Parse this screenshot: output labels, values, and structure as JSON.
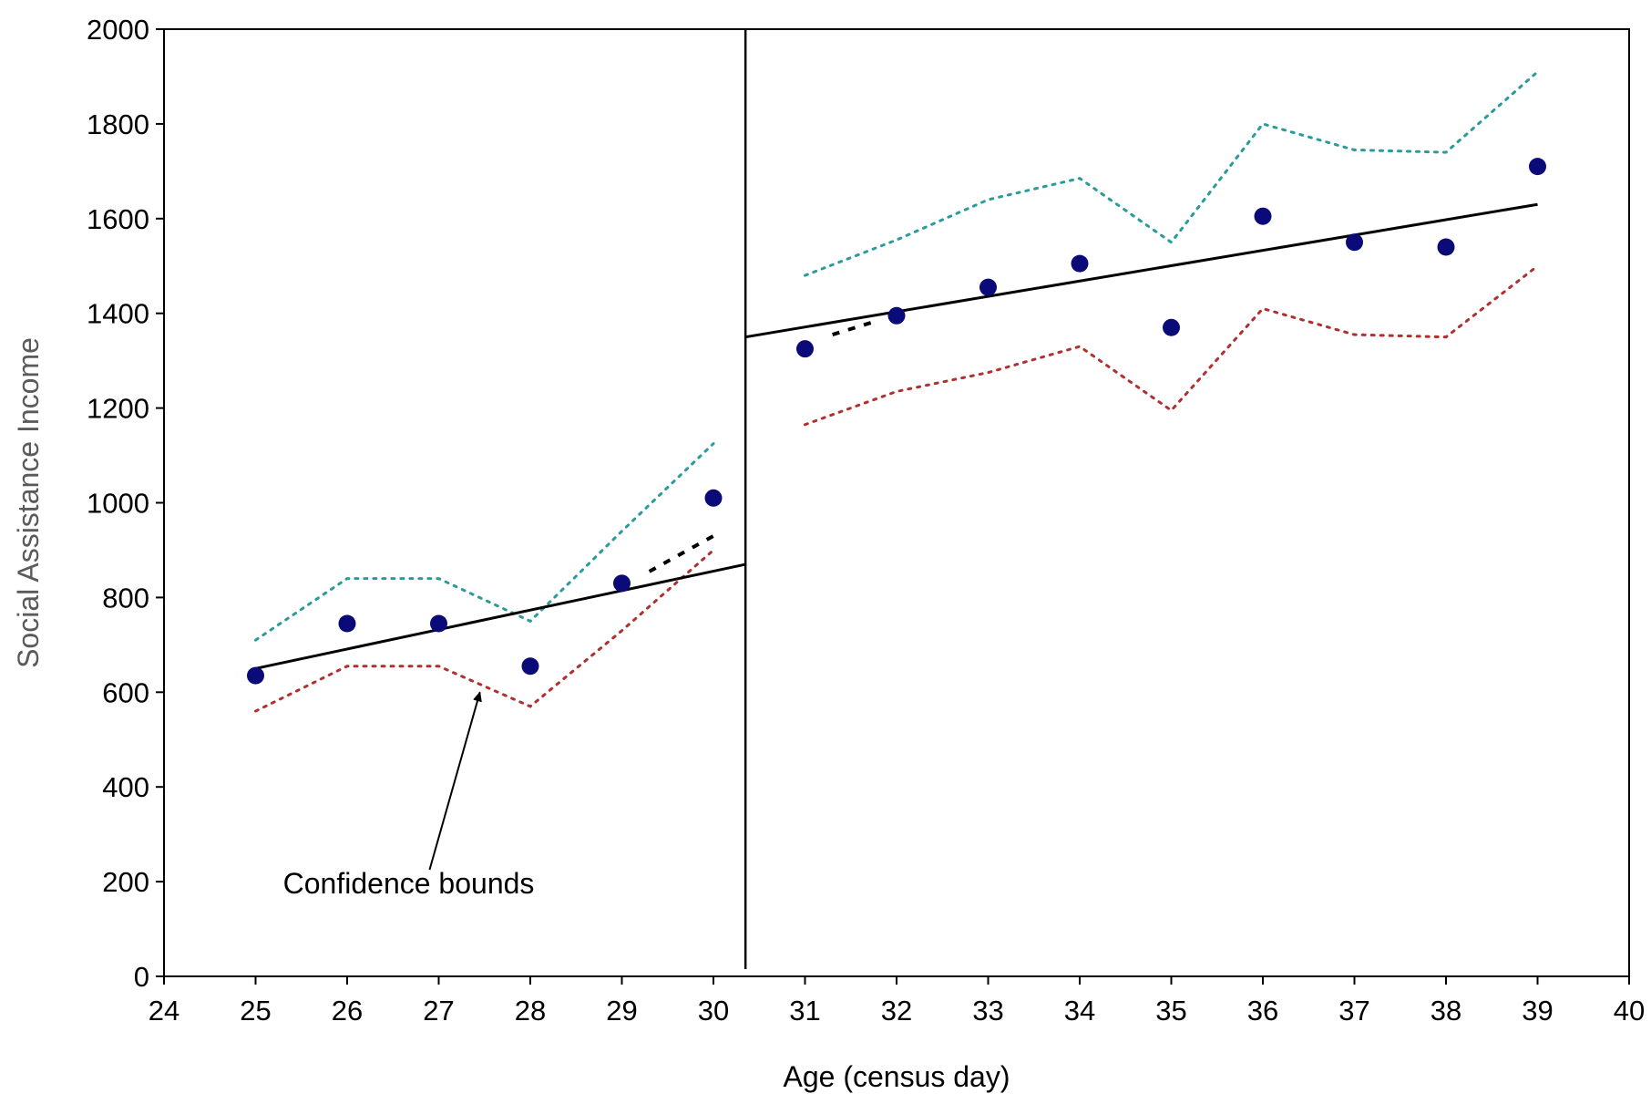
{
  "chart_data": {
    "type": "scatter",
    "title": "",
    "xlabel": "Age (census day)",
    "ylabel": "Social Assistance Income",
    "xlim": [
      24,
      40
    ],
    "ylim": [
      0,
      2000
    ],
    "x_ticks": [
      24,
      25,
      26,
      27,
      28,
      29,
      30,
      31,
      32,
      33,
      34,
      35,
      36,
      37,
      38,
      39,
      40
    ],
    "y_ticks": [
      0,
      200,
      400,
      600,
      800,
      1000,
      1200,
      1400,
      1600,
      1800,
      2000
    ],
    "grid": false,
    "legend": "none",
    "cutoff_x": 30.35,
    "points": {
      "color": "#0a0a78",
      "x": [
        25,
        26,
        27,
        28,
        29,
        30,
        31,
        32,
        33,
        34,
        35,
        36,
        37,
        38,
        39
      ],
      "y": [
        635,
        745,
        745,
        655,
        830,
        1010,
        1325,
        1395,
        1455,
        1505,
        1370,
        1605,
        1550,
        1540,
        1710
      ]
    },
    "fit_lines": [
      {
        "color": "#000000",
        "x": [
          25,
          30.35
        ],
        "y": [
          650,
          870
        ]
      },
      {
        "color": "#000000",
        "x": [
          30.35,
          39
        ],
        "y": [
          1350,
          1630
        ]
      }
    ],
    "fit_extensions": [
      {
        "color": "#000000",
        "x": [
          29.3,
          30
        ],
        "y": [
          855,
          930
        ]
      },
      {
        "color": "#000000",
        "x": [
          31.3,
          31.8
        ],
        "y": [
          1355,
          1385
        ]
      }
    ],
    "upper_bound": {
      "color": "#2a9a9a",
      "segments": [
        {
          "x": [
            25,
            26,
            27,
            28,
            29,
            30
          ],
          "y": [
            710,
            840,
            840,
            750,
            940,
            1125
          ]
        },
        {
          "x": [
            31,
            32,
            33,
            34,
            35,
            36,
            37,
            38,
            39
          ],
          "y": [
            1480,
            1555,
            1640,
            1685,
            1550,
            1800,
            1745,
            1740,
            1910
          ]
        }
      ]
    },
    "lower_bound": {
      "color": "#b03030",
      "segments": [
        {
          "x": [
            25,
            26,
            27,
            28,
            29,
            30
          ],
          "y": [
            560,
            655,
            655,
            570,
            730,
            900
          ]
        },
        {
          "x": [
            31,
            32,
            33,
            34,
            35,
            36,
            37,
            38,
            39
          ],
          "y": [
            1165,
            1235,
            1275,
            1330,
            1195,
            1410,
            1355,
            1350,
            1500
          ]
        }
      ]
    },
    "annotation": {
      "text": "Confidence bounds",
      "x": 25.3,
      "y": 175,
      "arrow_from": [
        26.9,
        225
      ],
      "arrow_to": [
        27.45,
        600
      ]
    }
  }
}
